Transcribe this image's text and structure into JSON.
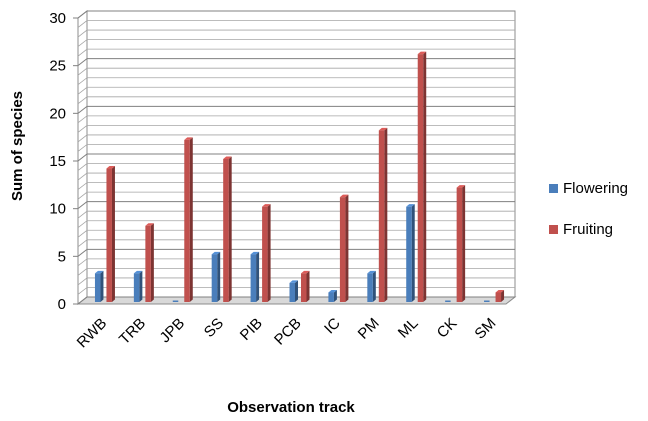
{
  "chart_data": {
    "type": "bar",
    "title": "",
    "xlabel": "Observation track",
    "ylabel": "Sum of species",
    "categories": [
      "RWB",
      "TRB",
      "JPB",
      "SS",
      "PIB",
      "PCB",
      "IC",
      "PM",
      "ML",
      "CK",
      "SM"
    ],
    "series": [
      {
        "name": "Flowering",
        "color": "#4a7ebb",
        "values": [
          3,
          3,
          0,
          5,
          5,
          2,
          1,
          3,
          10,
          0,
          0
        ]
      },
      {
        "name": "Fruiting",
        "color": "#c0504d",
        "values": [
          14,
          8,
          17,
          15,
          10,
          3,
          11,
          18,
          26,
          12,
          1
        ]
      }
    ],
    "ylim": [
      0,
      30
    ],
    "yticks": [
      0,
      5,
      10,
      15,
      20,
      25,
      30
    ],
    "grid": true,
    "legend": "right"
  }
}
